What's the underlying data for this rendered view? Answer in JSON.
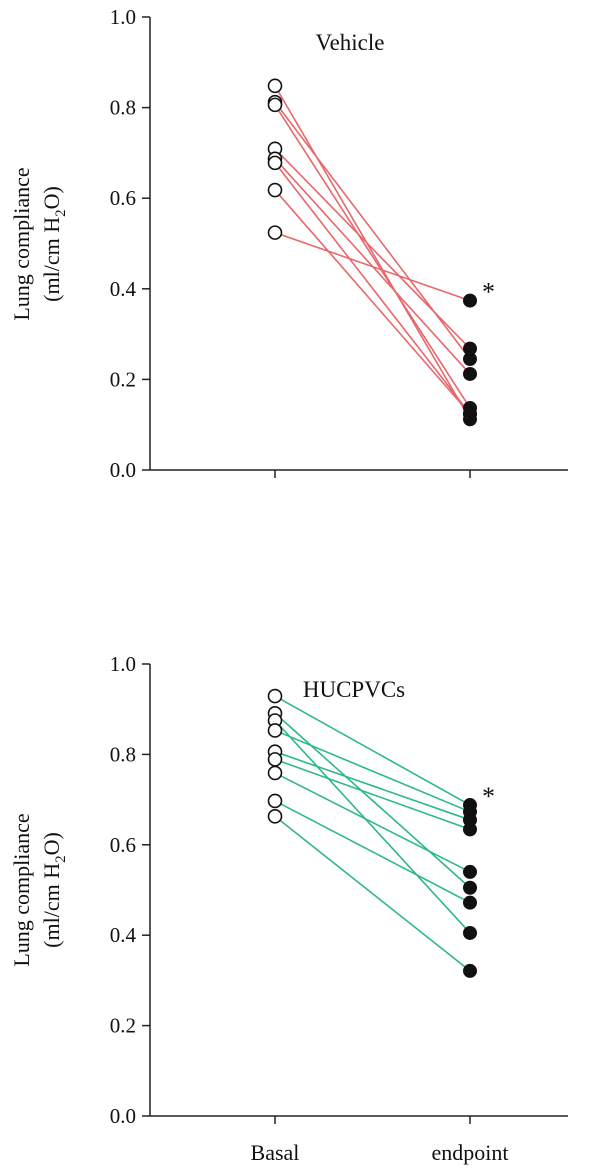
{
  "chart_data": [
    {
      "type": "line",
      "title": "Vehicle",
      "ylabel": [
        "Lung compliance",
        "(ml/cm H",
        "2",
        "O)"
      ],
      "ylim": [
        0.0,
        1.0
      ],
      "yticks": [
        "0.0",
        "0.2",
        "0.4",
        "0.6",
        "0.8",
        "1.0"
      ],
      "categories": [
        "Basal",
        "endpoint"
      ],
      "line_color": "#e8676b",
      "significance": "*",
      "pairs": [
        {
          "basal": 0.848,
          "endpoint": 0.112
        },
        {
          "basal": 0.812,
          "endpoint": 0.245
        },
        {
          "basal": 0.806,
          "endpoint": 0.137
        },
        {
          "basal": 0.709,
          "endpoint": 0.268
        },
        {
          "basal": 0.687,
          "endpoint": 0.212
        },
        {
          "basal": 0.678,
          "endpoint": 0.124
        },
        {
          "basal": 0.618,
          "endpoint": 0.124
        },
        {
          "basal": 0.524,
          "endpoint": 0.374
        }
      ]
    },
    {
      "type": "line",
      "title": "HUCPVCs",
      "ylabel": [
        "Lung compliance",
        "(ml/cm H",
        "2",
        "O)"
      ],
      "ylim": [
        0.0,
        1.0
      ],
      "yticks": [
        "0.0",
        "0.2",
        "0.4",
        "0.6",
        "0.8",
        "1.0"
      ],
      "categories": [
        "Basal",
        "endpoint"
      ],
      "line_color": "#2db888",
      "significance": "*",
      "pairs": [
        {
          "basal": 0.929,
          "endpoint": 0.688
        },
        {
          "basal": 0.891,
          "endpoint": 0.505
        },
        {
          "basal": 0.875,
          "endpoint": 0.405
        },
        {
          "basal": 0.853,
          "endpoint": 0.673
        },
        {
          "basal": 0.806,
          "endpoint": 0.655
        },
        {
          "basal": 0.789,
          "endpoint": 0.634
        },
        {
          "basal": 0.759,
          "endpoint": 0.54
        },
        {
          "basal": 0.697,
          "endpoint": 0.472
        },
        {
          "basal": 0.663,
          "endpoint": 0.321
        }
      ]
    }
  ]
}
